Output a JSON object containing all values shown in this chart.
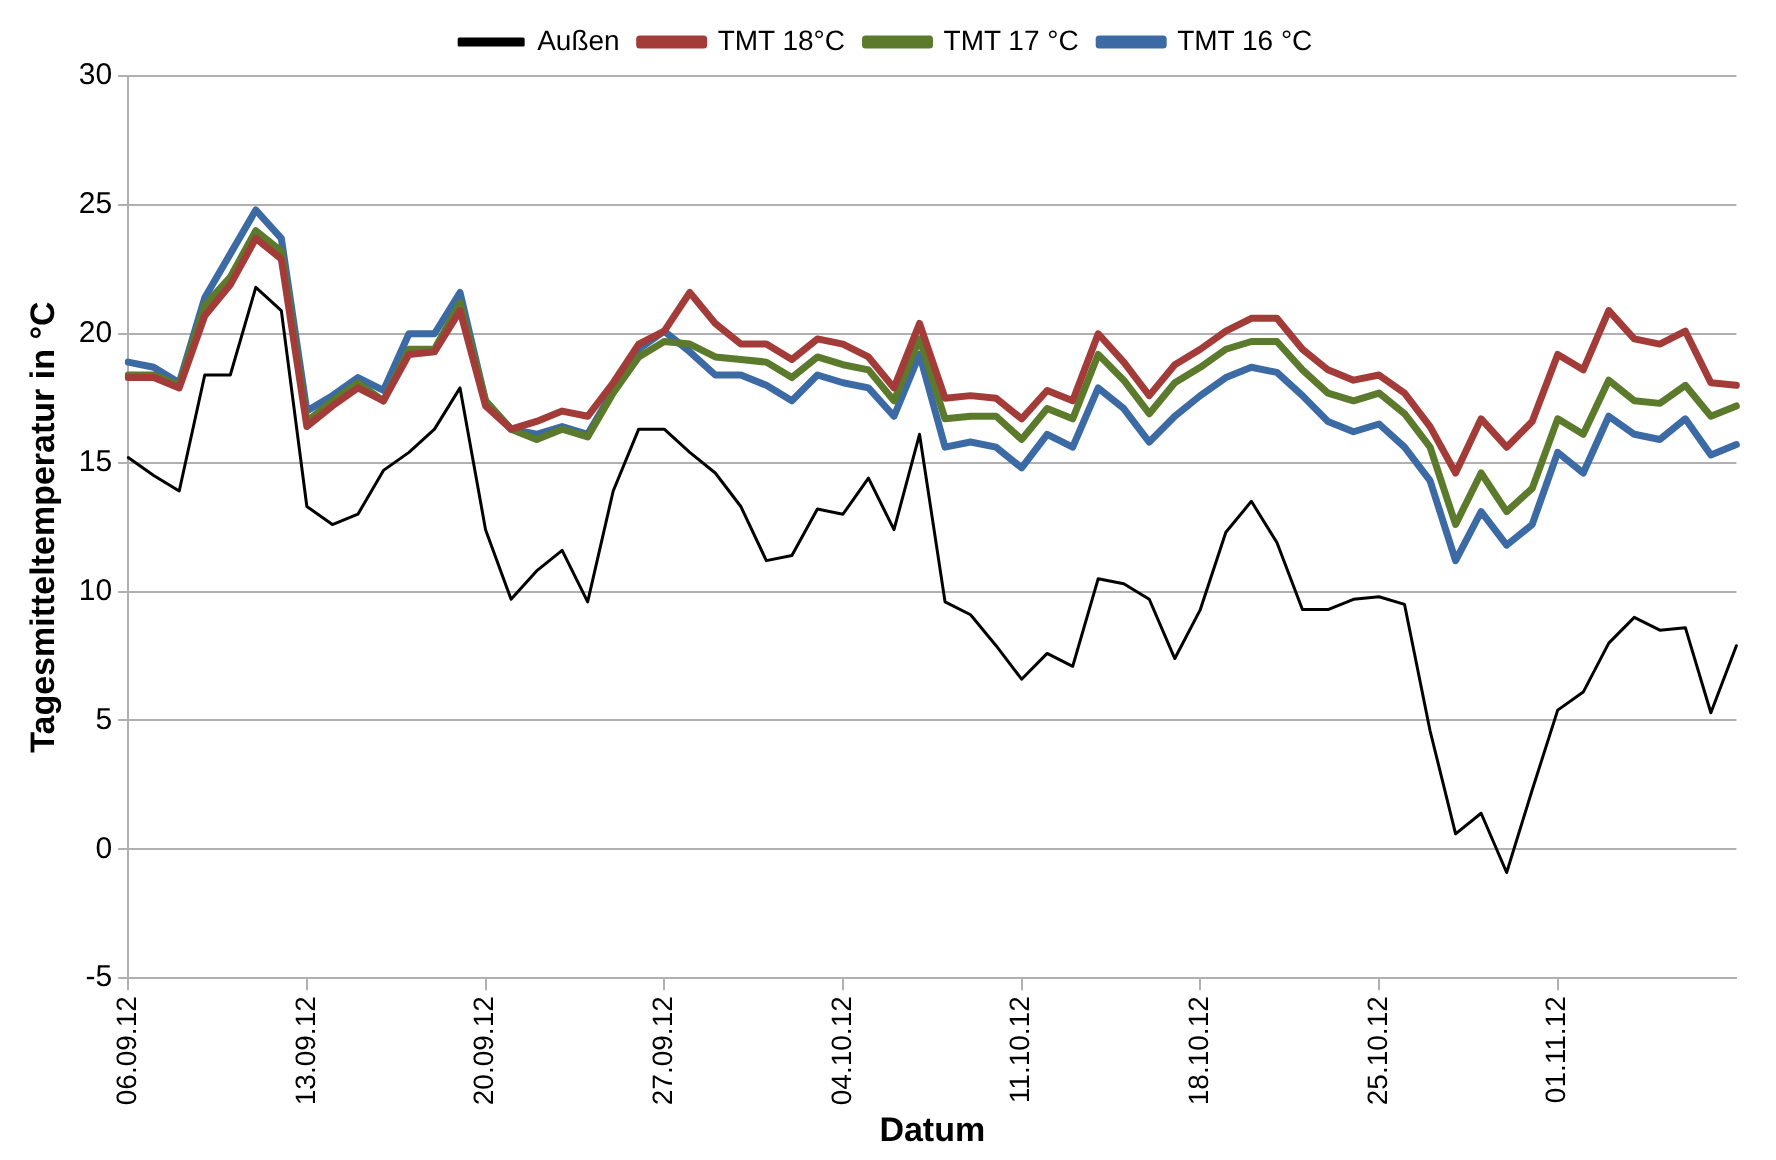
{
  "chart_data": {
    "type": "line",
    "xlabel": "Datum",
    "ylabel": "Tagesmitteltemperatur in °C",
    "categories": [
      "06.09.12",
      null,
      null,
      null,
      null,
      null,
      null,
      "13.09.12",
      null,
      null,
      null,
      null,
      null,
      null,
      "20.09.12",
      null,
      null,
      null,
      null,
      null,
      null,
      "27.09.12",
      null,
      null,
      null,
      null,
      null,
      null,
      "04.10.12",
      null,
      null,
      null,
      null,
      null,
      null,
      "11.10.12",
      null,
      null,
      null,
      null,
      null,
      null,
      "18.10.12",
      null,
      null,
      null,
      null,
      null,
      null,
      "25.10.12",
      null,
      null,
      null,
      null,
      null,
      null,
      "01.11.12",
      null,
      null,
      null,
      null,
      null,
      null,
      null
    ],
    "series": [
      {
        "name": "Außen",
        "color": "#000000",
        "values": [
          15.2,
          14.5,
          13.9,
          18.4,
          18.4,
          21.8,
          20.9,
          13.3,
          12.6,
          13.0,
          14.7,
          15.4,
          16.3,
          17.9,
          12.4,
          9.7,
          10.8,
          11.6,
          9.6,
          13.9,
          16.3,
          16.3,
          15.4,
          14.6,
          13.3,
          11.2,
          11.4,
          13.2,
          13.0,
          14.4,
          12.4,
          16.1,
          9.6,
          9.1,
          7.9,
          6.6,
          7.6,
          7.1,
          10.5,
          10.3,
          9.7,
          7.4,
          9.3,
          12.3,
          13.5,
          11.9,
          9.3,
          9.3,
          9.7,
          9.8,
          9.5,
          4.6,
          0.6,
          1.4,
          -0.9,
          2.3,
          5.4,
          6.1,
          8.0,
          9.0,
          8.5,
          8.6,
          5.3,
          7.9
        ]
      },
      {
        "name": "TMT 18°C",
        "color": "#a33c39",
        "values": [
          18.3,
          18.3,
          17.9,
          20.7,
          21.9,
          23.7,
          22.9,
          16.4,
          17.2,
          17.9,
          17.4,
          19.2,
          19.3,
          20.9,
          17.2,
          16.3,
          16.6,
          17.0,
          16.8,
          18.1,
          19.6,
          20.1,
          21.6,
          20.4,
          19.6,
          19.6,
          19.0,
          19.8,
          19.6,
          19.1,
          17.9,
          20.4,
          17.5,
          17.6,
          17.5,
          16.7,
          17.8,
          17.4,
          20.0,
          18.9,
          17.6,
          18.8,
          19.4,
          20.1,
          20.6,
          20.6,
          19.4,
          18.6,
          18.2,
          18.4,
          17.7,
          16.4,
          14.6,
          16.7,
          15.6,
          16.6,
          19.2,
          18.6,
          20.9,
          19.8,
          19.6,
          20.1,
          18.1,
          18.0
        ]
      },
      {
        "name": "TMT 17 °C",
        "color": "#5b7a2c",
        "values": [
          18.4,
          18.4,
          18.0,
          21.1,
          22.2,
          24.0,
          23.2,
          16.6,
          17.4,
          18.1,
          17.4,
          19.4,
          19.4,
          21.2,
          17.4,
          16.3,
          15.9,
          16.3,
          16.0,
          17.7,
          19.1,
          19.7,
          19.6,
          19.1,
          19.0,
          18.9,
          18.3,
          19.1,
          18.8,
          18.6,
          17.4,
          19.8,
          16.7,
          16.8,
          16.8,
          15.9,
          17.1,
          16.7,
          19.2,
          18.2,
          16.9,
          18.1,
          18.7,
          19.4,
          19.7,
          19.7,
          18.6,
          17.7,
          17.4,
          17.7,
          16.9,
          15.6,
          12.6,
          14.6,
          13.1,
          14.0,
          16.7,
          16.1,
          18.2,
          17.4,
          17.3,
          18.0,
          16.8,
          17.2
        ]
      },
      {
        "name": "TMT 16 °C",
        "color": "#3c6aa5",
        "values": [
          18.9,
          18.7,
          18.1,
          21.4,
          23.1,
          24.8,
          23.7,
          17.0,
          17.6,
          18.3,
          17.8,
          20.0,
          20.0,
          21.6,
          17.4,
          16.3,
          16.1,
          16.4,
          16.1,
          17.8,
          19.4,
          20.1,
          19.3,
          18.4,
          18.4,
          18.0,
          17.4,
          18.4,
          18.1,
          17.9,
          16.8,
          19.2,
          15.6,
          15.8,
          15.6,
          14.8,
          16.1,
          15.6,
          17.9,
          17.1,
          15.8,
          16.8,
          17.6,
          18.3,
          18.7,
          18.5,
          17.6,
          16.6,
          16.2,
          16.5,
          15.6,
          14.3,
          11.2,
          13.1,
          11.8,
          12.6,
          15.4,
          14.6,
          16.8,
          16.1,
          15.9,
          16.7,
          15.3,
          15.7
        ]
      }
    ],
    "ylim": [
      -5,
      30
    ],
    "yticks": [
      -5,
      0,
      5,
      10,
      15,
      20,
      25,
      30
    ],
    "grid": "y",
    "legend": "top",
    "marker": "none",
    "line_style": "solid"
  }
}
